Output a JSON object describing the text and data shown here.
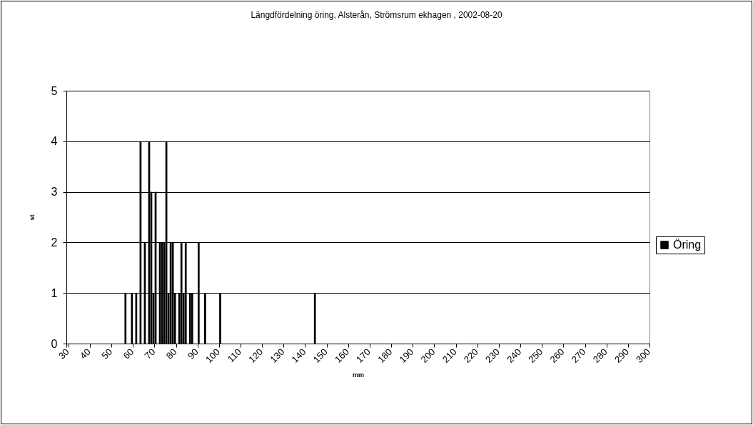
{
  "chart_data": {
    "type": "bar",
    "title": "Längdfördelning öring, Alsterån, Strömsrum ekhagen , 2002-08-20",
    "xlabel": "mm",
    "ylabel": "st",
    "categories": [
      "30",
      null,
      null,
      null,
      null,
      null,
      null,
      null,
      null,
      null,
      "40",
      null,
      null,
      null,
      null,
      null,
      null,
      null,
      null,
      null,
      "50",
      null,
      null,
      null,
      null,
      null,
      null,
      null,
      null,
      null,
      "60",
      null,
      null,
      null,
      null,
      null,
      null,
      null,
      null,
      null,
      "70",
      null,
      null,
      null,
      null,
      null,
      null,
      null,
      null,
      null,
      "80",
      null,
      null,
      null,
      null,
      null,
      null,
      null,
      null,
      null,
      "90",
      null,
      null,
      null,
      null,
      null,
      null,
      null,
      null,
      null,
      "100",
      null,
      null,
      null,
      null,
      null,
      null,
      null,
      null,
      null,
      "110",
      null,
      null,
      null,
      null,
      null,
      null,
      null,
      null,
      null,
      "120",
      null,
      null,
      null,
      null,
      null,
      null,
      null,
      null,
      null,
      "130",
      null,
      null,
      null,
      null,
      null,
      null,
      null,
      null,
      null,
      "140",
      null,
      null,
      null,
      null,
      null,
      null,
      null,
      null,
      null,
      "150",
      null,
      null,
      null,
      null,
      null,
      null,
      null,
      null,
      null,
      "160",
      null,
      null,
      null,
      null,
      null,
      null,
      null,
      null,
      null,
      "170",
      null,
      null,
      null,
      null,
      null,
      null,
      null,
      null,
      null,
      "180",
      null,
      null,
      null,
      null,
      null,
      null,
      null,
      null,
      null,
      "190",
      null,
      null,
      null,
      null,
      null,
      null,
      null,
      null,
      null,
      "200",
      null,
      null,
      null,
      null,
      null,
      null,
      null,
      null,
      null,
      "210",
      null,
      null,
      null,
      null,
      null,
      null,
      null,
      null,
      null,
      "220",
      null,
      null,
      null,
      null,
      null,
      null,
      null,
      null,
      null,
      "230",
      null,
      null,
      null,
      null,
      null,
      null,
      null,
      null,
      null,
      "240",
      null,
      null,
      null,
      null,
      null,
      null,
      null,
      null,
      null,
      "250",
      null,
      null,
      null,
      null,
      null,
      null,
      null,
      null,
      null,
      "260",
      null,
      null,
      null,
      null,
      null,
      null,
      null,
      null,
      null,
      "270",
      null,
      null,
      null,
      null,
      null,
      null,
      null,
      null,
      null,
      "280",
      null,
      null,
      null,
      null,
      null,
      null,
      null,
      null,
      null,
      "290",
      null,
      null,
      null,
      null,
      null,
      null,
      null,
      null,
      null,
      "300"
    ],
    "series": [
      {
        "name": "Öring",
        "color": "#000000",
        "values": [
          0,
          0,
          0,
          0,
          0,
          0,
          0,
          0,
          0,
          0,
          0,
          0,
          0,
          0,
          0,
          0,
          0,
          0,
          0,
          0,
          0,
          0,
          0,
          0,
          0,
          0,
          0,
          1,
          0,
          0,
          1,
          0,
          1,
          0,
          4,
          0,
          2,
          0,
          4,
          3,
          1,
          3,
          0,
          2,
          2,
          2,
          4,
          1,
          2,
          2,
          1,
          0,
          1,
          2,
          1,
          2,
          0,
          1,
          1,
          0,
          0,
          2,
          0,
          0,
          1,
          0,
          0,
          0,
          0,
          0,
          0,
          1,
          0,
          0,
          0,
          0,
          0,
          0,
          0,
          0,
          0,
          0,
          0,
          0,
          0,
          0,
          0,
          0,
          0,
          0,
          0,
          0,
          0,
          0,
          0,
          0,
          0,
          0,
          0,
          0,
          0,
          0,
          0,
          0,
          0,
          0,
          0,
          0,
          0,
          0,
          0,
          0,
          0,
          0,
          0,
          1,
          0,
          0,
          0,
          0,
          0,
          0,
          0,
          0,
          0,
          0,
          0,
          0,
          0,
          0,
          0,
          0,
          0,
          0,
          0,
          0,
          0,
          0,
          0,
          0,
          0,
          0,
          0,
          0,
          0,
          0,
          0,
          0,
          0,
          0,
          0,
          0,
          0,
          0,
          0,
          0,
          0,
          0,
          0,
          0,
          0,
          0,
          0,
          0,
          0,
          0,
          0,
          0,
          0,
          0,
          0,
          0,
          0,
          0,
          0,
          0,
          0,
          0,
          0,
          0,
          0,
          0,
          0,
          0,
          0,
          0,
          0,
          0,
          0,
          0,
          0,
          0,
          0,
          0,
          0,
          0,
          0,
          0,
          0,
          0,
          0,
          0,
          0,
          0,
          0,
          0,
          0,
          0,
          0,
          0,
          0,
          0,
          0,
          0,
          0,
          0,
          0,
          0,
          0,
          0,
          0,
          0,
          0,
          0,
          0,
          0,
          0,
          0,
          0,
          0,
          0,
          0,
          0,
          0,
          0,
          0,
          0,
          0,
          0,
          0,
          0,
          0,
          0,
          0,
          0,
          0,
          0,
          0,
          0,
          0,
          0,
          0,
          0,
          0,
          0,
          0,
          0,
          0,
          0,
          0,
          0,
          0,
          0,
          0,
          0,
          0,
          0,
          0,
          0,
          0,
          0
        ]
      }
    ],
    "ylim": [
      0,
      5
    ],
    "yticks": [
      0,
      1,
      2,
      3,
      4,
      5
    ],
    "grid": "y",
    "legend": "right"
  }
}
